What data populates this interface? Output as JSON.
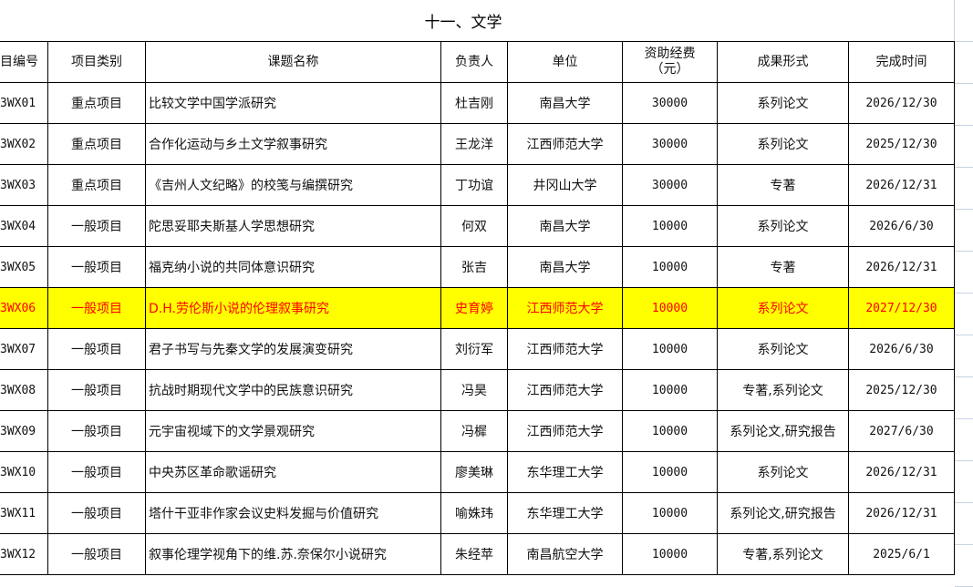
{
  "title": "十一、文学",
  "colors": {
    "highlight_bg": "#ffff00",
    "highlight_text": "#ff0000"
  },
  "headers": [
    "目编号",
    "项目类别",
    "课题名称",
    "负责人",
    "单位",
    "资助经费\n（元）",
    "成果形式",
    "完成时间"
  ],
  "header_funding_line1": "资助经费",
  "header_funding_line2": "（元）",
  "rows": [
    {
      "code": "3WX01",
      "type": "重点项目",
      "name": "比较文学中国学派研究",
      "leader": "杜吉刚",
      "unit": "南昌大学",
      "fund": "30000",
      "form": "系列论文",
      "date": "2026/12/30"
    },
    {
      "code": "3WX02",
      "type": "重点项目",
      "name": "合作化运动与乡土文学叙事研究",
      "leader": "王龙洋",
      "unit": "江西师范大学",
      "fund": "30000",
      "form": "系列论文",
      "date": "2025/12/30"
    },
    {
      "code": "3WX03",
      "type": "重点项目",
      "name": "《吉州人文纪略》的校笺与编撰研究",
      "leader": "丁功谊",
      "unit": "井冈山大学",
      "fund": "30000",
      "form": "专著",
      "date": "2026/12/31"
    },
    {
      "code": "3WX04",
      "type": "一般项目",
      "name": "陀思妥耶夫斯基人学思想研究",
      "leader": "何双",
      "unit": "南昌大学",
      "fund": "10000",
      "form": "系列论文",
      "date": "2026/6/30"
    },
    {
      "code": "3WX05",
      "type": "一般项目",
      "name": "福克纳小说的共同体意识研究",
      "leader": "张吉",
      "unit": "南昌大学",
      "fund": "10000",
      "form": "专著",
      "date": "2026/12/31"
    },
    {
      "code": "3WX06",
      "type": "一般项目",
      "name": "D.H.劳伦斯小说的伦理叙事研究",
      "leader": "史育婷",
      "unit": "江西师范大学",
      "fund": "10000",
      "form": "系列论文",
      "date": "2027/12/30",
      "highlighted": true
    },
    {
      "code": "3WX07",
      "type": "一般项目",
      "name": "君子书写与先秦文学的发展演变研究",
      "leader": "刘衍军",
      "unit": "江西师范大学",
      "fund": "10000",
      "form": "系列论文",
      "date": "2026/6/30"
    },
    {
      "code": "3WX08",
      "type": "一般项目",
      "name": "抗战时期现代文学中的民族意识研究",
      "leader": "冯昊",
      "unit": "江西师范大学",
      "fund": "10000",
      "form": "专著,系列论文",
      "date": "2025/12/30"
    },
    {
      "code": "3WX09",
      "type": "一般项目",
      "name": "元宇宙视域下的文学景观研究",
      "leader": "冯樨",
      "unit": "江西师范大学",
      "fund": "10000",
      "form": "系列论文,研究报告",
      "date": "2027/6/30"
    },
    {
      "code": "3WX10",
      "type": "一般项目",
      "name": "中央苏区革命歌谣研究",
      "leader": "廖美琳",
      "unit": "东华理工大学",
      "fund": "10000",
      "form": "系列论文",
      "date": "2026/12/31"
    },
    {
      "code": "3WX11",
      "type": "一般项目",
      "name": "塔什干亚非作家会议史料发掘与价值研究",
      "leader": "喻姝玮",
      "unit": "东华理工大学",
      "fund": "10000",
      "form": "系列论文,研究报告",
      "date": "2026/12/31"
    },
    {
      "code": "3WX12",
      "type": "一般项目",
      "name": "叙事伦理学视角下的维.苏.奈保尔小说研究",
      "leader": "朱经苹",
      "unit": "南昌航空大学",
      "fund": "10000",
      "form": "专著,系列论文",
      "date": "2025/6/1"
    }
  ]
}
